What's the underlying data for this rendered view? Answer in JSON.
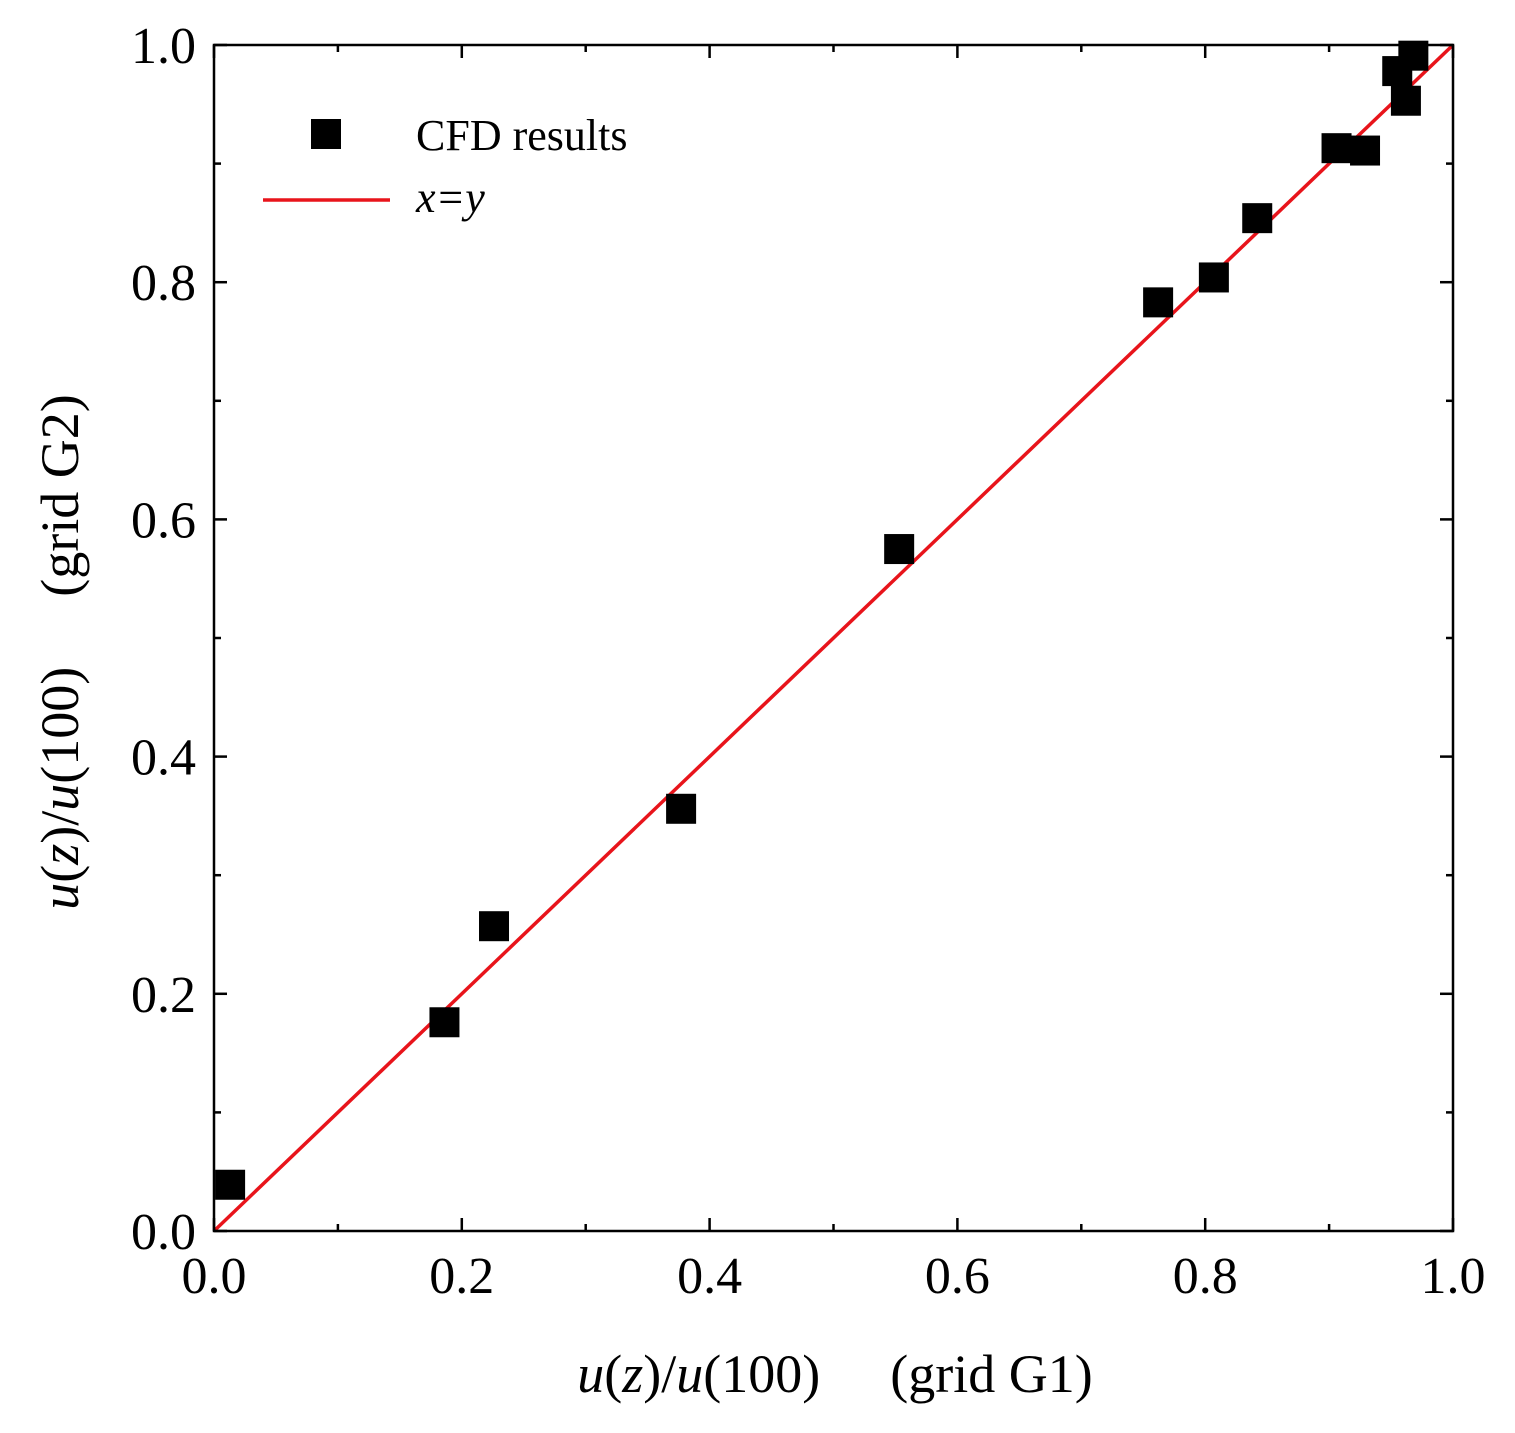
{
  "chart_data": {
    "type": "scatter",
    "title": "",
    "xlabel": {
      "main": "u(z)/u(100)",
      "suffix": "(grid G1)"
    },
    "ylabel": {
      "main": "u(z)/u(100)",
      "suffix": "(grid G2)"
    },
    "xlim": [
      0.0,
      1.0
    ],
    "ylim": [
      0.0,
      1.0
    ],
    "grid": false,
    "legend_position": "top-left",
    "x_ticks": [
      "0.0",
      "0.2",
      "0.4",
      "0.6",
      "0.8",
      "1.0"
    ],
    "y_ticks": [
      "0.0",
      "0.2",
      "0.4",
      "0.6",
      "0.8",
      "1.0"
    ],
    "series": [
      {
        "name": "CFD results",
        "marker": "square",
        "color": "#000000",
        "points": [
          {
            "x": 0.013,
            "y": 0.039
          },
          {
            "x": 0.186,
            "y": 0.176
          },
          {
            "x": 0.226,
            "y": 0.257
          },
          {
            "x": 0.377,
            "y": 0.356
          },
          {
            "x": 0.553,
            "y": 0.575
          },
          {
            "x": 0.762,
            "y": 0.783
          },
          {
            "x": 0.807,
            "y": 0.804
          },
          {
            "x": 0.842,
            "y": 0.854
          },
          {
            "x": 0.906,
            "y": 0.913
          },
          {
            "x": 0.929,
            "y": 0.911
          },
          {
            "x": 0.955,
            "y": 0.978
          },
          {
            "x": 0.962,
            "y": 0.953
          },
          {
            "x": 0.968,
            "y": 0.991
          }
        ]
      },
      {
        "name": "x=y",
        "marker": "line",
        "color": "#e8141b",
        "points": [
          {
            "x": 0.0,
            "y": 0.0
          },
          {
            "x": 1.0,
            "y": 1.0
          }
        ]
      }
    ]
  }
}
